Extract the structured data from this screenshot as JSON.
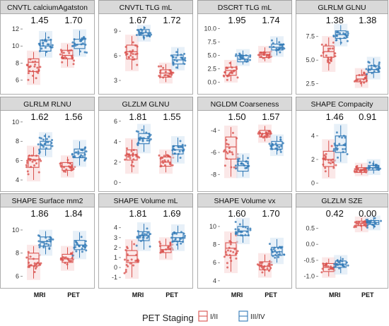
{
  "chart_data": {
    "type": "box",
    "panel_categories": [
      "MRI",
      "PET"
    ],
    "legend": {
      "title": "PET Staging",
      "entries": [
        {
          "label": "I/II",
          "color": "#d9534f"
        },
        {
          "label": "III/IV",
          "color": "#337ab7"
        }
      ]
    },
    "panels": [
      {
        "title": "CNVTL calciumAgatston",
        "ylim": [
          4.8,
          13
        ],
        "yticks": [
          6,
          8,
          10,
          12
        ],
        "pvalues": [
          "1.45",
          "1.70"
        ],
        "groups": {
          "MRI": {
            "I/II": [
              5.6,
              7.0,
              8.1,
              8.5,
              9.3
            ],
            "III/IV": [
              8.8,
              9.4,
              10.0,
              10.7,
              11.6
            ]
          },
          "PET": {
            "I/II": [
              7.6,
              8.5,
              8.9,
              9.5,
              10.2
            ],
            "III/IV": [
              8.9,
              9.7,
              10.2,
              10.8,
              11.8
            ]
          }
        }
      },
      {
        "title": "CNVTL TLG mL",
        "ylim": [
          1.8,
          10.3
        ],
        "yticks": [
          3,
          6,
          9
        ],
        "pvalues": [
          "1.67",
          "1.72"
        ],
        "groups": {
          "MRI": {
            "I/II": [
              4.3,
              5.6,
              6.5,
              7.3,
              8.4
            ],
            "III/IV": [
              7.9,
              8.5,
              8.8,
              9.2,
              9.6
            ]
          },
          "PET": {
            "I/II": [
              2.8,
              3.4,
              3.9,
              4.3,
              5.0
            ],
            "III/IV": [
              4.4,
              5.0,
              5.5,
              6.1,
              6.9
            ]
          }
        }
      },
      {
        "title": "DSCRT TLG mL",
        "ylim": [
          -1.5,
          11.5
        ],
        "yticks": [
          0.0,
          2.5,
          5.0,
          7.5,
          10.0
        ],
        "pvalues": [
          "1.95",
          "1.74"
        ],
        "groups": {
          "MRI": {
            "I/II": [
              0.2,
              1.3,
              2.2,
              2.8,
              3.9
            ],
            "III/IV": [
              3.3,
              3.8,
              4.3,
              5.0,
              5.9
            ]
          },
          "PET": {
            "I/II": [
              3.9,
              4.6,
              5.1,
              5.6,
              6.5
            ],
            "III/IV": [
              5.0,
              6.0,
              6.5,
              7.1,
              8.3
            ]
          }
        }
      },
      {
        "title": "GLRLM GLNU",
        "ylim": [
          1.8,
          9.2
        ],
        "yticks": [
          2.5,
          5.0,
          7.5
        ],
        "pvalues": [
          "1.38",
          "1.38"
        ],
        "groups": {
          "MRI": {
            "I/II": [
              3.9,
              5.3,
              5.9,
              6.5,
              7.4
            ],
            "III/IV": [
              6.6,
              7.3,
              7.7,
              8.1,
              8.7
            ]
          },
          "PET": {
            "I/II": [
              2.2,
              2.7,
              3.0,
              3.4,
              4.0
            ],
            "III/IV": [
              3.1,
              3.7,
              4.0,
              4.4,
              5.2
            ]
          }
        }
      },
      {
        "title": "GLRLM RLNU",
        "ylim": [
          3.2,
          10.5
        ],
        "yticks": [
          4,
          6,
          8,
          10
        ],
        "pvalues": [
          "1.62",
          "1.56"
        ],
        "groups": {
          "MRI": {
            "I/II": [
              4.0,
              5.3,
              6.1,
              6.5,
              7.4
            ],
            "III/IV": [
              6.5,
              7.2,
              7.6,
              8.0,
              8.8
            ]
          },
          "PET": {
            "I/II": [
              4.4,
              5.0,
              5.4,
              5.8,
              6.4
            ],
            "III/IV": [
              5.5,
              6.3,
              6.8,
              7.2,
              8.0
            ]
          }
        }
      },
      {
        "title": "GLZLM GLNU",
        "ylim": [
          -0.5,
          6.4
        ],
        "yticks": [
          0,
          2,
          4,
          6
        ],
        "pvalues": [
          "1.81",
          "1.55"
        ],
        "groups": {
          "MRI": {
            "I/II": [
              1.0,
              2.2,
              2.7,
              3.2,
              4.2
            ],
            "III/IV": [
              3.0,
              3.8,
              4.3,
              4.8,
              5.6
            ]
          },
          "PET": {
            "I/II": [
              1.0,
              1.6,
              2.0,
              2.5,
              3.1
            ],
            "III/IV": [
              2.0,
              2.8,
              3.2,
              3.6,
              4.4
            ]
          }
        }
      },
      {
        "title": "NGLDM Coarseness",
        "ylim": [
          -9.2,
          -2.8
        ],
        "yticks": [
          -8,
          -6,
          -4
        ],
        "pvalues": [
          "1.50",
          "1.57"
        ],
        "groups": {
          "MRI": {
            "I/II": [
              -8.2,
              -6.6,
              -5.5,
              -4.6,
              -3.7
            ],
            "III/IV": [
              -8.2,
              -7.7,
              -7.2,
              -6.8,
              -6.2
            ]
          },
          "PET": {
            "I/II": [
              -5.0,
              -4.6,
              -4.3,
              -4.0,
              -3.6
            ],
            "III/IV": [
              -6.2,
              -5.7,
              -5.3,
              -5.0,
              -4.5
            ]
          }
        }
      },
      {
        "title": "SHAPE Compacity",
        "ylim": [
          -0.4,
          5.6
        ],
        "yticks": [
          0,
          2,
          4
        ],
        "pvalues": [
          "1.46",
          "0.91"
        ],
        "groups": {
          "MRI": {
            "I/II": [
              0.5,
              1.4,
              2.0,
              2.7,
              3.6
            ],
            "III/IV": [
              1.8,
              2.6,
              3.2,
              4.0,
              4.9
            ]
          },
          "PET": {
            "I/II": [
              0.7,
              0.9,
              1.1,
              1.3,
              1.6
            ],
            "III/IV": [
              0.8,
              1.1,
              1.3,
              1.5,
              1.9
            ]
          }
        }
      },
      {
        "title": "SHAPE Surface mm2",
        "ylim": [
          5.3,
          11.4
        ],
        "yticks": [
          6,
          8,
          10
        ],
        "pvalues": [
          "1.86",
          "1.84"
        ],
        "groups": {
          "MRI": {
            "I/II": [
              5.8,
              6.9,
              7.5,
              8.0,
              8.6
            ],
            "III/IV": [
              7.9,
              8.6,
              9.0,
              9.4,
              9.9
            ]
          },
          "PET": {
            "I/II": [
              6.6,
              7.2,
              7.5,
              7.9,
              8.5
            ],
            "III/IV": [
              7.6,
              8.3,
              8.7,
              9.1,
              9.8
            ]
          }
        }
      },
      {
        "title": "SHAPE Volume mL",
        "ylim": [
          -1.7,
          5.4
        ],
        "yticks": [
          -1,
          0,
          1,
          2,
          3,
          4
        ],
        "pvalues": [
          "1.81",
          "1.69"
        ],
        "groups": {
          "MRI": {
            "I/II": [
              -1.0,
              0.5,
              1.2,
              1.7,
              2.7
            ],
            "III/IV": [
              1.8,
              2.7,
              3.2,
              3.6,
              4.4
            ]
          },
          "PET": {
            "I/II": [
              0.9,
              1.5,
              1.8,
              2.2,
              2.9
            ],
            "III/IV": [
              1.8,
              2.6,
              3.0,
              3.5,
              4.2
            ]
          }
        }
      },
      {
        "title": "SHAPE Volume vx",
        "ylim": [
          3.6,
          11.4
        ],
        "yticks": [
          4,
          6,
          8,
          10
        ],
        "pvalues": [
          "1.60",
          "1.70"
        ],
        "groups": {
          "MRI": {
            "I/II": [
              5.0,
              6.8,
              7.6,
              8.2,
              9.3
            ],
            "III/IV": [
              8.2,
              9.0,
              9.5,
              10.0,
              10.8
            ]
          },
          "PET": {
            "I/II": [
              4.5,
              5.2,
              5.6,
              6.1,
              6.9
            ],
            "III/IV": [
              6.0,
              6.8,
              7.2,
              7.7,
              8.6
            ]
          }
        }
      },
      {
        "title": "GLZLM SZE",
        "ylim": [
          -1.25,
          0.95
        ],
        "yticks": [
          -1.0,
          -0.5,
          0.0,
          0.5
        ],
        "pvalues": [
          "0.42",
          "0.00"
        ],
        "groups": {
          "MRI": {
            "I/II": [
              -1.0,
              -0.85,
              -0.72,
              -0.6,
              -0.45
            ],
            "III/IV": [
              -0.9,
              -0.72,
              -0.62,
              -0.52,
              -0.38
            ]
          },
          "PET": {
            "I/II": [
              0.42,
              0.58,
              0.66,
              0.72,
              0.82
            ],
            "III/IV": [
              0.48,
              0.62,
              0.68,
              0.74,
              0.85
            ]
          }
        }
      }
    ]
  }
}
